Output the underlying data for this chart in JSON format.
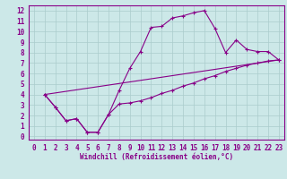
{
  "xlabel": "Windchill (Refroidissement éolien,°C)",
  "bg_color": "#cce8e8",
  "grid_color": "#aacccc",
  "line_color": "#880088",
  "xlim": [
    -0.5,
    23.5
  ],
  "ylim": [
    -0.3,
    12.5
  ],
  "xticks": [
    0,
    1,
    2,
    3,
    4,
    5,
    6,
    7,
    8,
    9,
    10,
    11,
    12,
    13,
    14,
    15,
    16,
    17,
    18,
    19,
    20,
    21,
    22,
    23
  ],
  "yticks": [
    0,
    1,
    2,
    3,
    4,
    5,
    6,
    7,
    8,
    9,
    10,
    11,
    12
  ],
  "line1_x": [
    1,
    2,
    3,
    4,
    5,
    6,
    7,
    8,
    9,
    10,
    11,
    12,
    13,
    14,
    15,
    16,
    17,
    18,
    19,
    20,
    21,
    22,
    23
  ],
  "line1_y": [
    4.0,
    2.8,
    1.5,
    1.7,
    0.4,
    0.4,
    2.1,
    4.4,
    6.5,
    8.1,
    10.4,
    10.5,
    11.3,
    11.5,
    11.8,
    12.0,
    10.3,
    8.0,
    9.2,
    8.3,
    8.1,
    8.1,
    7.3
  ],
  "line2_x": [
    1,
    2,
    3,
    4,
    5,
    6,
    7,
    8,
    9,
    10,
    11,
    12,
    13,
    14,
    15,
    16,
    17,
    18,
    19,
    20,
    21,
    22,
    23
  ],
  "line2_y": [
    4.0,
    2.8,
    1.5,
    1.7,
    0.4,
    0.4,
    2.1,
    3.1,
    3.2,
    3.4,
    3.7,
    4.1,
    4.4,
    4.8,
    5.1,
    5.5,
    5.8,
    6.2,
    6.5,
    6.8,
    7.0,
    7.2,
    7.3
  ],
  "line3_x": [
    1,
    23
  ],
  "line3_y": [
    4.0,
    7.3
  ],
  "tick_fontsize": 5.5,
  "xlabel_fontsize": 5.5
}
